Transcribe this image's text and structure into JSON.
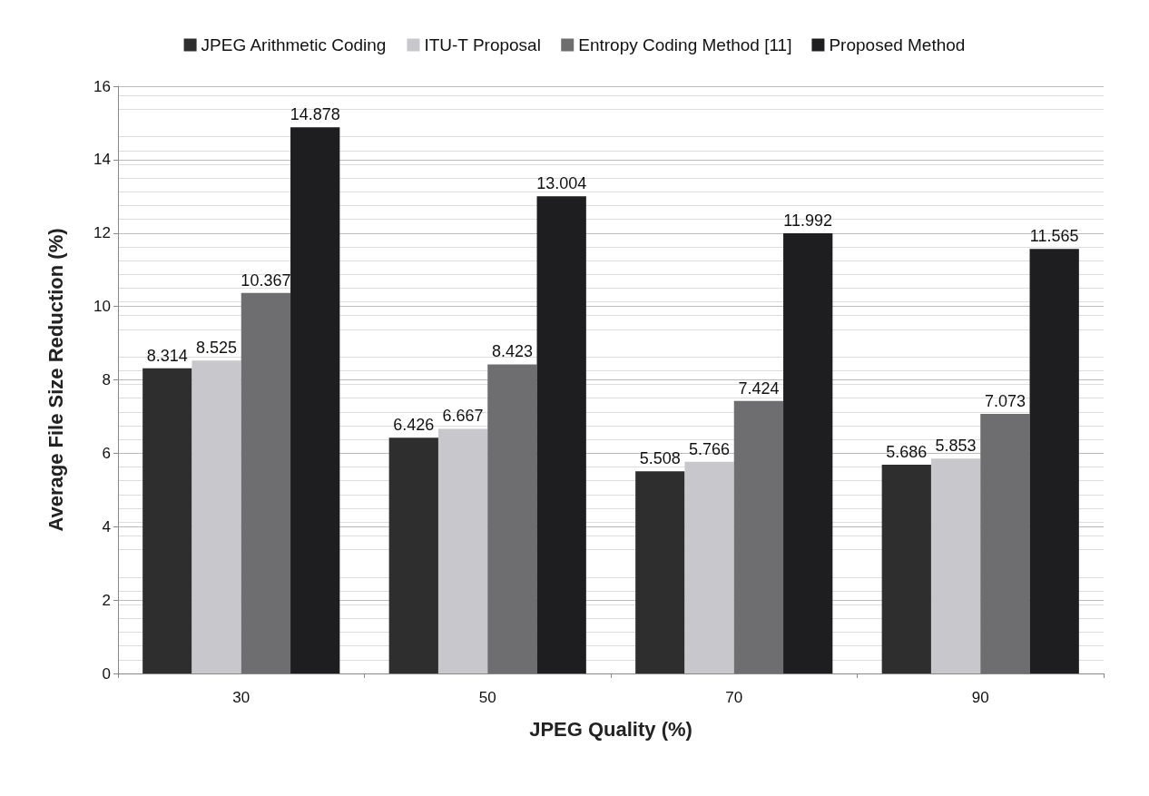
{
  "chart_data": {
    "type": "bar",
    "xlabel": "JPEG Quality (%)",
    "ylabel": "Average File Size Reduction (%)",
    "categories": [
      "30",
      "50",
      "70",
      "90"
    ],
    "series": [
      {
        "name": "JPEG Arithmetic Coding",
        "color": "#2e2e2e",
        "values": [
          8.314,
          6.426,
          5.508,
          5.686
        ]
      },
      {
        "name": "ITU-T Proposal",
        "color": "#c8c8cc",
        "values": [
          8.525,
          6.667,
          5.766,
          5.853
        ]
      },
      {
        "name": "Entropy Coding Method [11]",
        "color": "#6e6e70",
        "values": [
          10.367,
          8.423,
          7.424,
          7.073
        ]
      },
      {
        "name": "Proposed Method",
        "color": "#1e1e20",
        "values": [
          14.878,
          13.004,
          11.992,
          11.565
        ]
      }
    ],
    "ylim": [
      0,
      16
    ],
    "yticks": [
      0,
      2,
      4,
      6,
      8,
      10,
      12,
      14,
      16
    ],
    "grid": "y",
    "legend": "top",
    "data_labels": true
  }
}
